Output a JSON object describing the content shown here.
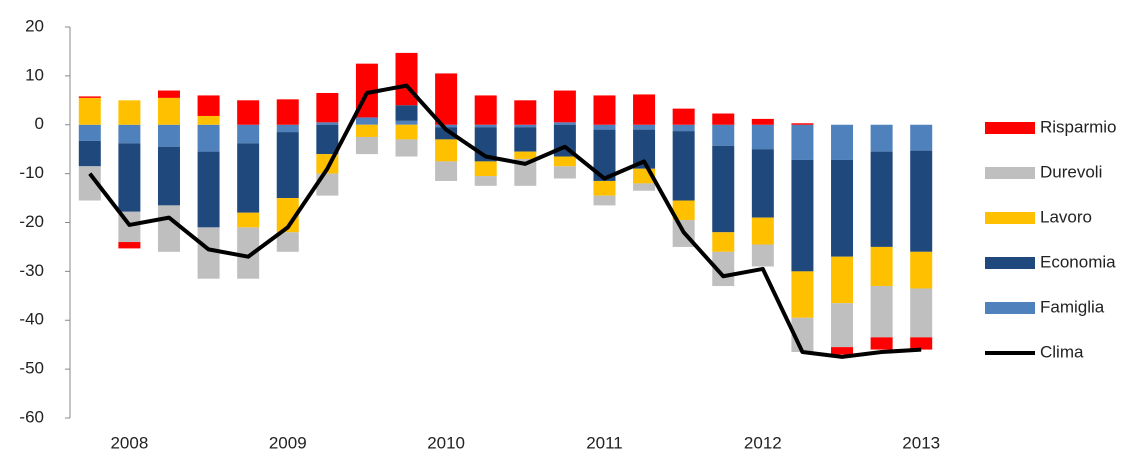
{
  "chart_data": {
    "type": "bar",
    "stacked": true,
    "categories": [
      null,
      "2008",
      null,
      null,
      null,
      "2009",
      null,
      null,
      null,
      "2010",
      null,
      null,
      null,
      "2011",
      null,
      null,
      null,
      "2012",
      null,
      null,
      null,
      "2013"
    ],
    "ylim": [
      -60,
      20
    ],
    "yticks": [
      -60,
      -50,
      -40,
      -30,
      -20,
      -10,
      0,
      10,
      20
    ],
    "grid": false,
    "legend": "right",
    "series": [
      {
        "name": "Risparmio",
        "color": "#ff0000",
        "values": [
          0.3,
          -1.3,
          1.5,
          4.2,
          5,
          5.2,
          6,
          11,
          10.7,
          10.5,
          6,
          5,
          6.5,
          6,
          6.2,
          3.3,
          2.3,
          1.2,
          0.3,
          -1.5,
          -2.5,
          -2.5
        ]
      },
      {
        "name": "Durevoli",
        "color": "#bfbfbf",
        "values": [
          -7,
          -6.2,
          -9.5,
          -10.5,
          -10.5,
          -4,
          -4.5,
          -3.5,
          -3.5,
          -4,
          -2,
          -5.5,
          -2.5,
          -2,
          -1.5,
          -5.5,
          -7,
          -4.5,
          -7,
          -9,
          -10.5,
          -10
        ]
      },
      {
        "name": "Lavoro",
        "color": "#ffc000",
        "values": [
          5.5,
          5,
          5.5,
          1.8,
          -3,
          -7,
          -4,
          -2.5,
          -3,
          -4.5,
          -3,
          -1.5,
          -2,
          -3,
          -3,
          -4,
          -4,
          -5.5,
          -9.5,
          -9.5,
          -8,
          -7.5
        ]
      },
      {
        "name": "Economia",
        "color": "#1f497d",
        "values": [
          -5.2,
          -14,
          -12,
          -15.5,
          -14.2,
          -13.5,
          -6,
          0,
          3.2,
          -2.5,
          -7,
          -5,
          -6.5,
          -10.5,
          -8,
          -14.2,
          -17.7,
          -14,
          -22.8,
          -19.8,
          -19.5,
          -20.7
        ]
      },
      {
        "name": "Famiglia",
        "color": "#4f81bd",
        "values": [
          -3.3,
          -3.8,
          -4.5,
          -5.5,
          -3.8,
          -1.5,
          0.5,
          1.5,
          0.8,
          -0.5,
          -0.5,
          -0.5,
          0.5,
          -1,
          -1,
          -1.3,
          -4.3,
          -5,
          -7.2,
          -7.2,
          -5.5,
          -5.3
        ]
      },
      {
        "name": "Clima",
        "color": "#000000",
        "type": "line",
        "values": [
          -10,
          -20.5,
          -19,
          -25.5,
          -27,
          -21,
          -9,
          6.5,
          8,
          -1,
          -6.5,
          -8,
          -4.5,
          -11,
          -7.5,
          -22,
          -31,
          -29.5,
          -46.5,
          -47.5,
          -46.5,
          -46
        ]
      }
    ]
  }
}
